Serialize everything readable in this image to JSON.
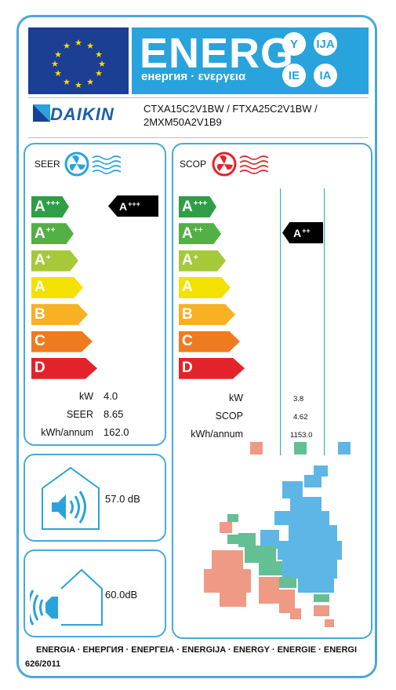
{
  "header": {
    "energy_word": "ENERG",
    "energy_sub": "енергия · ενεργεια",
    "suffixes": [
      "Y",
      "IJA",
      "IE",
      "IA"
    ]
  },
  "brand": {
    "logo_text": "DAIKIN"
  },
  "models": {
    "line1": "CTXA15C2V1BW / FTXA25C2V1BW /",
    "line2": "2MXM50A2V1B9"
  },
  "scale": [
    {
      "label": "A",
      "sup": "+++",
      "color": "#2f9e47"
    },
    {
      "label": "A",
      "sup": "++",
      "color": "#52b045"
    },
    {
      "label": "A",
      "sup": "+",
      "color": "#a6c93a"
    },
    {
      "label": "A",
      "sup": "",
      "color": "#f3e200"
    },
    {
      "label": "B",
      "sup": "",
      "color": "#f7b122"
    },
    {
      "label": "C",
      "sup": "",
      "color": "#ef7b21"
    },
    {
      "label": "D",
      "sup": "",
      "color": "#e3232b"
    }
  ],
  "seer": {
    "title": "SEER",
    "rating": {
      "label": "A",
      "sup": "+++"
    },
    "rows": [
      {
        "label": "kW",
        "value": "4.0"
      },
      {
        "label": "SEER",
        "value": "8.65"
      },
      {
        "label": "kWh/annum",
        "value": "162.0"
      }
    ]
  },
  "scop": {
    "title": "SCOP",
    "rating": {
      "label": "A",
      "sup": "++"
    },
    "rows": [
      {
        "label": "kW",
        "value": "3.8"
      },
      {
        "label": "SCOP",
        "value": "4.62"
      },
      {
        "label": "kWh/annum",
        "value": "1153.0"
      }
    ],
    "zone_colors": [
      "#ef9a84",
      "#63bf94",
      "#5db6e6"
    ]
  },
  "noise": {
    "indoor": "57.0 dB",
    "outdoor_value": "60.0",
    "outdoor_unit": "dB"
  },
  "footer": {
    "energy_words": "ENERGIA · ЕНЕРГИЯ · ΕΝΕΡΓΕΙΑ · ENERGIJA · ENERGY · ENERGIE · ENERGI",
    "regulation": "626/2011"
  },
  "colors": {
    "frame": "#4aa8dc",
    "header_blue": "#29a3dc",
    "flag_blue": "#1b3f93",
    "star_yellow": "#ffdd00"
  }
}
